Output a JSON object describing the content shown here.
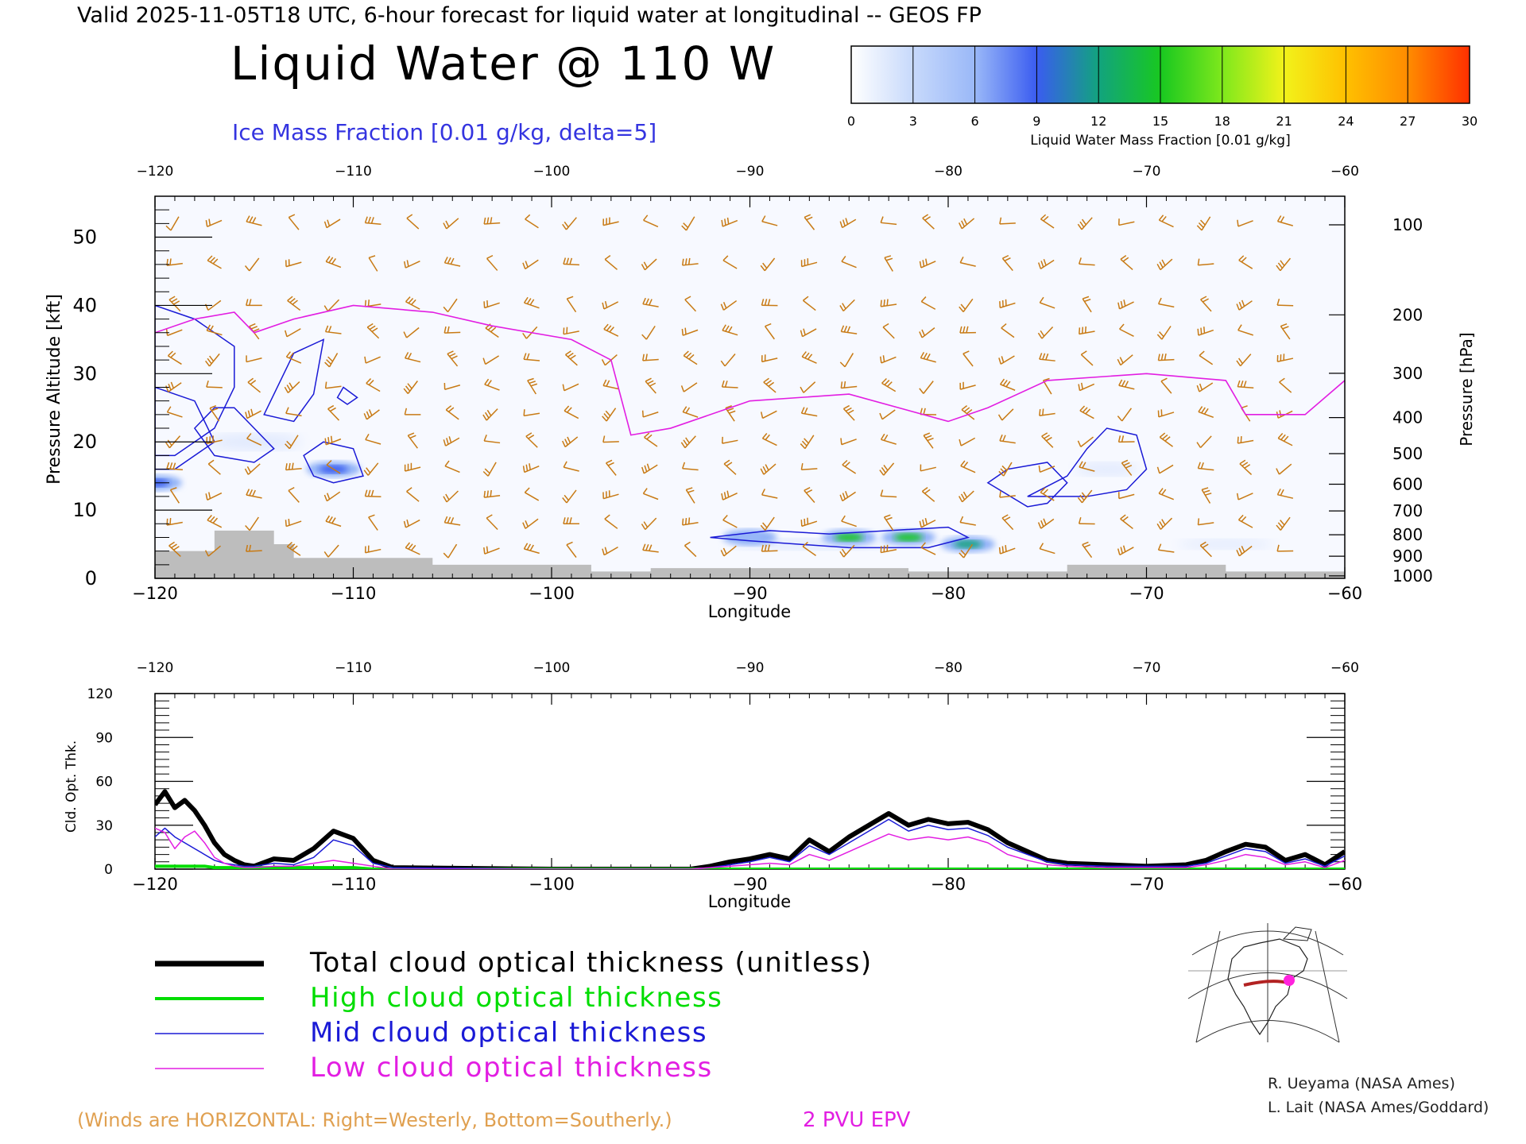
{
  "header": {
    "valid_line": "Valid 2025-11-05T18 UTC, 6-hour forecast for liquid water at longitudinal -- GEOS FP",
    "title": "Liquid Water @ 110 W",
    "ice_label": "Ice Mass Fraction [0.01 g/kg, delta=5]"
  },
  "colorbar": {
    "ticks": [
      "0",
      "3",
      "6",
      "9",
      "12",
      "15",
      "18",
      "21",
      "24",
      "27",
      "30"
    ],
    "label": "Liquid Water Mass Fraction [0.01 g/kg]",
    "colors": [
      "#f6f8fe",
      "#c7d9fb",
      "#9ab8f8",
      "#6f8ff3",
      "#3a5cf0",
      "#12a37e",
      "#18c820",
      "#7ee81c",
      "#f2f21a",
      "#ffb400",
      "#ff4a00"
    ]
  },
  "colors": {
    "ice_contour": "#1a1ad6",
    "epv": "#e21ee2",
    "wind": "#c87a14",
    "terrain": "#bdbdbd",
    "total": "#000000",
    "high": "#00dd00",
    "mid": "#1a1ad6",
    "low": "#e21ee2"
  },
  "chart_data": [
    {
      "type": "heatmap",
      "xlabel": "Longitude",
      "ylabel": "Pressure Altitude [kft]",
      "y2label": "Pressure [hPa]",
      "xlim": [
        -120,
        -60
      ],
      "ylim": [
        0,
        56
      ],
      "x_ticks": [
        "-120",
        "-110",
        "-100",
        "-90",
        "-80",
        "-70",
        "-60"
      ],
      "y_ticks": [
        "0",
        "10",
        "20",
        "30",
        "40",
        "50"
      ],
      "pressure_ticks": [
        "100",
        "200",
        "300",
        "400",
        "500",
        "600",
        "700",
        "800",
        "900",
        "1000"
      ],
      "liquid_water_max": [
        {
          "lon": -90,
          "kft": 6,
          "value": 6
        },
        {
          "lon": -85,
          "kft": 6,
          "value": 18
        },
        {
          "lon": -82,
          "kft": 6,
          "value": 18
        },
        {
          "lon": -79,
          "kft": 5,
          "value": 15
        },
        {
          "lon": -111,
          "kft": 16,
          "value": 12
        },
        {
          "lon": -120,
          "kft": 14,
          "value": 12
        }
      ],
      "epv_2pvu_kft": [
        [
          -120,
          36
        ],
        [
          -118,
          38
        ],
        [
          -116,
          39
        ],
        [
          -115,
          36
        ],
        [
          -113,
          38
        ],
        [
          -110,
          40
        ],
        [
          -106,
          39
        ],
        [
          -103,
          37
        ],
        [
          -99,
          35
        ],
        [
          -97,
          32
        ],
        [
          -96,
          21
        ],
        [
          -94,
          22
        ],
        [
          -90,
          26
        ],
        [
          -85,
          27
        ],
        [
          -80,
          23
        ],
        [
          -78,
          25
        ],
        [
          -75,
          29
        ],
        [
          -70,
          30
        ],
        [
          -66,
          29
        ],
        [
          -65,
          24
        ],
        [
          -62,
          24
        ],
        [
          -60,
          29
        ]
      ],
      "terrain_kft": [
        [
          -120,
          4
        ],
        [
          -117,
          7
        ],
        [
          -114,
          5
        ],
        [
          -113,
          3
        ],
        [
          -106,
          2
        ],
        [
          -98,
          1
        ],
        [
          -95,
          1.5
        ],
        [
          -87,
          1.5
        ],
        [
          -82,
          1
        ],
        [
          -74,
          2
        ],
        [
          -68,
          2
        ],
        [
          -66,
          1
        ],
        [
          -60,
          0.5
        ]
      ]
    },
    {
      "type": "line",
      "xlabel": "Longitude",
      "ylabel": "Cld. Opt. Thk.",
      "xlim": [
        -120,
        -60
      ],
      "ylim": [
        0,
        120
      ],
      "x_ticks": [
        "-120",
        "-110",
        "-100",
        "-90",
        "-80",
        "-70",
        "-60"
      ],
      "y_ticks": [
        "0",
        "30",
        "60",
        "90",
        "120"
      ],
      "x": [
        -120,
        -119.5,
        -119,
        -118.5,
        -118,
        -117.5,
        -117,
        -116.5,
        -116,
        -115.5,
        -115,
        -114,
        -113,
        -112,
        -111,
        -110,
        -109,
        -108,
        -100,
        -95,
        -93,
        -92,
        -91,
        -90,
        -89,
        -88,
        -87,
        -86,
        -85,
        -84,
        -83,
        -82,
        -81,
        -80,
        -79,
        -78,
        -77,
        -76,
        -75,
        -74,
        -72,
        -70,
        -68,
        -67,
        -66,
        -65,
        -64,
        -63,
        -62,
        -61,
        -60
      ],
      "series": [
        {
          "name": "Total cloud optical thickness (unitless)",
          "values": [
            44,
            53,
            42,
            47,
            40,
            30,
            18,
            10,
            6,
            3,
            2,
            7,
            6,
            14,
            26,
            21,
            6,
            1,
            0,
            0,
            0,
            2,
            5,
            7,
            10,
            7,
            20,
            12,
            22,
            30,
            38,
            30,
            34,
            31,
            32,
            27,
            18,
            12,
            6,
            4,
            3,
            2,
            3,
            6,
            12,
            17,
            15,
            6,
            10,
            3,
            12
          ]
        },
        {
          "name": "High cloud optical thickness",
          "values": [
            2,
            2,
            2,
            2,
            2,
            2,
            1,
            1,
            1,
            1,
            1,
            1,
            1,
            1,
            1,
            1,
            0,
            0,
            0,
            0,
            0,
            0,
            0,
            0,
            0,
            0,
            0,
            0,
            0,
            0,
            0,
            0,
            0,
            0,
            0,
            0,
            0,
            0,
            0,
            0,
            0,
            0,
            0,
            0,
            0,
            0,
            0,
            0,
            0,
            0,
            0
          ]
        },
        {
          "name": "Mid cloud optical thickness",
          "values": [
            22,
            28,
            22,
            18,
            14,
            10,
            6,
            4,
            3,
            2,
            2,
            4,
            3,
            8,
            20,
            16,
            4,
            1,
            0,
            0,
            0,
            1,
            3,
            5,
            8,
            5,
            16,
            10,
            18,
            26,
            34,
            26,
            30,
            27,
            28,
            23,
            15,
            10,
            5,
            3,
            2,
            2,
            2,
            4,
            9,
            14,
            12,
            4,
            7,
            2,
            9
          ]
        },
        {
          "name": "Low cloud optical thickness",
          "values": [
            28,
            25,
            14,
            22,
            26,
            18,
            8,
            4,
            2,
            1,
            1,
            2,
            2,
            4,
            6,
            4,
            2,
            0,
            0,
            0,
            0,
            1,
            2,
            3,
            4,
            3,
            10,
            6,
            12,
            18,
            24,
            20,
            22,
            20,
            22,
            18,
            10,
            6,
            3,
            2,
            1,
            1,
            1,
            3,
            6,
            10,
            8,
            3,
            5,
            1,
            6
          ]
        }
      ]
    }
  ],
  "legend": [
    {
      "label": "Total cloud optical thickness (unitless)",
      "color": "#000000"
    },
    {
      "label": "High cloud optical thickness",
      "color": "#00dd00"
    },
    {
      "label": "Mid cloud optical thickness",
      "color": "#1a1ad6"
    },
    {
      "label": "Low cloud optical thickness",
      "color": "#e21ee2"
    }
  ],
  "footer": {
    "winds_note": "(Winds are HORIZONTAL: Right=Westerly, Bottom=Southerly.)",
    "epv_label": "2 PVU EPV",
    "credit1": "R. Ueyama (NASA Ames)",
    "credit2": "L. Lait (NASA Ames/Goddard)"
  }
}
